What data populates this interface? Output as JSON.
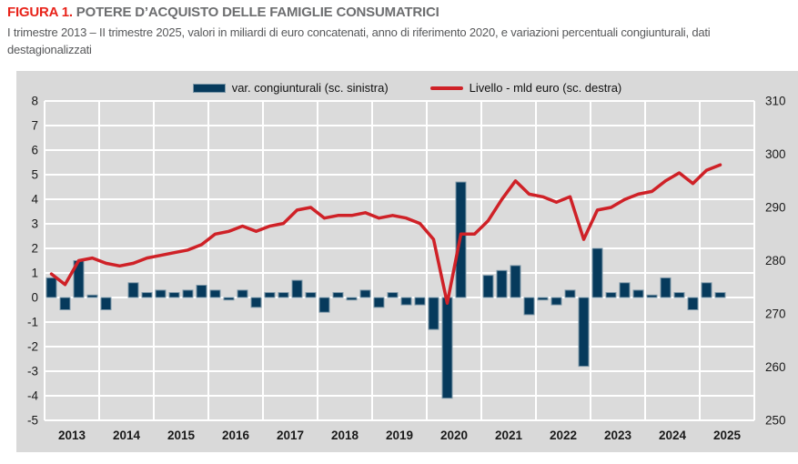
{
  "figure": {
    "label": "FIGURA 1.",
    "title": "POTERE D’ACQUISTO DELLE FAMIGLIE CONSUMATRICI",
    "subtitle": "I trimestre 2013 – II trimestre 2025, valori in miliardi di euro concatenati, anno di riferimento 2020, e variazioni percentuali congiunturali, dati destagionalizzati"
  },
  "legend": [
    {
      "label": "var. congiunturali (sc. sinistra)",
      "type": "bar"
    },
    {
      "label": "Livello - mld euro (sc. destra)",
      "type": "line"
    }
  ],
  "colors": {
    "bar_fill": "#063a5c",
    "bar_border": "#7e98a8",
    "line": "#cf2127",
    "panel_bg": "#dbdbdb",
    "chart_bg": "#d9d9d9",
    "gridline": "#ffffff",
    "tick_text": "#1a1a1a",
    "title_red": "#e8231a",
    "title_gray": "#6d6e70"
  },
  "chart_data": {
    "type": "bar+line dual-axis",
    "x_years": [
      2013,
      2014,
      2015,
      2016,
      2017,
      2018,
      2019,
      2020,
      2021,
      2022,
      2023,
      2024,
      2025
    ],
    "categories": [
      "2013Q1",
      "2013Q2",
      "2013Q3",
      "2013Q4",
      "2014Q1",
      "2014Q2",
      "2014Q3",
      "2014Q4",
      "2015Q1",
      "2015Q2",
      "2015Q3",
      "2015Q4",
      "2016Q1",
      "2016Q2",
      "2016Q3",
      "2016Q4",
      "2017Q1",
      "2017Q2",
      "2017Q3",
      "2017Q4",
      "2018Q1",
      "2018Q2",
      "2018Q3",
      "2018Q4",
      "2019Q1",
      "2019Q2",
      "2019Q3",
      "2019Q4",
      "2020Q1",
      "2020Q2",
      "2020Q3",
      "2020Q4",
      "2021Q1",
      "2021Q2",
      "2021Q3",
      "2021Q4",
      "2022Q1",
      "2022Q2",
      "2022Q3",
      "2022Q4",
      "2023Q1",
      "2023Q2",
      "2023Q3",
      "2023Q4",
      "2024Q1",
      "2024Q2",
      "2024Q3",
      "2024Q4",
      "2025Q1",
      "2025Q2"
    ],
    "series": [
      {
        "name": "var. congiunturali (sc. sinistra)",
        "type": "bar",
        "axis": "left",
        "unit": "%",
        "values": [
          0.8,
          -0.5,
          1.5,
          0.1,
          -0.5,
          0.0,
          0.6,
          0.2,
          0.3,
          0.2,
          0.3,
          0.5,
          0.3,
          -0.1,
          0.3,
          -0.4,
          0.2,
          0.2,
          0.7,
          0.2,
          -0.6,
          0.2,
          -0.1,
          0.3,
          -0.4,
          0.2,
          -0.3,
          -0.3,
          -1.3,
          -4.1,
          4.7,
          0.0,
          0.9,
          1.1,
          1.3,
          -0.7,
          -0.1,
          -0.3,
          0.3,
          -2.8,
          2.0,
          0.2,
          0.6,
          0.3,
          0.1,
          0.8,
          0.2,
          -0.5,
          0.6,
          0.2
        ]
      },
      {
        "name": "Livello - mld euro (sc. destra)",
        "type": "line",
        "axis": "right",
        "unit": "mld euro",
        "values": [
          277.5,
          275.5,
          280.0,
          280.5,
          279.5,
          279.0,
          279.5,
          280.5,
          281.0,
          281.5,
          282.0,
          283.0,
          285.0,
          285.5,
          286.5,
          285.5,
          286.5,
          287.0,
          289.5,
          290.0,
          288.0,
          288.5,
          288.5,
          289.0,
          288.0,
          288.5,
          288.0,
          287.0,
          284.0,
          272.0,
          285.0,
          285.0,
          287.5,
          291.5,
          295.0,
          292.5,
          292.0,
          291.0,
          292.0,
          284.0,
          289.5,
          290.0,
          291.5,
          292.5,
          293.0,
          295.0,
          296.5,
          294.5,
          297.0,
          298.0
        ]
      }
    ],
    "left_axis": {
      "min": -5,
      "max": 8,
      "tick_step": 1
    },
    "right_axis": {
      "min": 250,
      "max": 310,
      "tick_step": 10
    },
    "grid": true,
    "legend_position": "top-center"
  }
}
